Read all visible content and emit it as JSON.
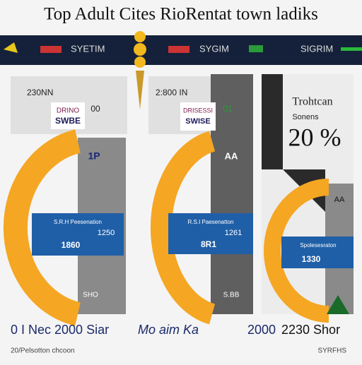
{
  "header": {
    "title": "Top Adult Cites RioRentat town ladiks"
  },
  "nav": {
    "items": [
      "SYETIM",
      "SYGIM",
      "SIGRIM"
    ]
  },
  "panels": [
    {
      "caption": "230NN",
      "badge_top": "DRINO",
      "badge_bottom": "SWBE",
      "side": "00",
      "icon": "1P",
      "box_title": "S.R.H Peesenation",
      "box_value": "1250",
      "box_extra": "1860",
      "corner": "SHO"
    },
    {
      "caption": "2:800 IN",
      "badge_top": "DRISESSI",
      "badge_bottom": "SWISE",
      "side": "01",
      "icon": "AA",
      "box_title": "R.S.I Paesenatton",
      "box_value": "1261",
      "box_extra": "8R1",
      "corner": "S.BB"
    },
    {
      "title": "Trohtcan",
      "subtitle": "Sonens",
      "value": "20 %",
      "icon": "AA",
      "box_title": "Spolesesraton",
      "box_value": "1330"
    }
  ],
  "footer": {
    "items": [
      "0 I Nec 2000 Siar",
      "Mo aim Ka",
      "2000",
      "2230 Shor"
    ],
    "note": "20/Pelsotton chcoon",
    "right": "SYRFHS"
  }
}
